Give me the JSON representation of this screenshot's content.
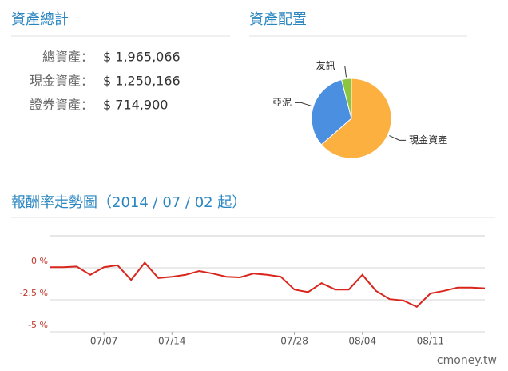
{
  "assets": {
    "title": "資產總計",
    "rows": [
      [
        "總資產：",
        "$ 1,965,066"
      ],
      [
        "現金資產：",
        "$ 1,250,166"
      ],
      [
        "證券資產：",
        "$ 714,900"
      ]
    ]
  },
  "chart_data": [
    {
      "type": "pie",
      "title": "資產配置",
      "categories": [
        "現金資產",
        "亞泥",
        "友訊"
      ],
      "values": [
        63.6,
        32.4,
        4
      ],
      "colors": [
        "#fbb040",
        "#4a8fe0",
        "#8cc63f"
      ]
    },
    {
      "type": "line",
      "title": "報酬率走勢圖（2014 / 07 / 02 起）",
      "categories": [
        null,
        null,
        null,
        null,
        "07/07",
        null,
        null,
        null,
        null,
        "07/14",
        null,
        null,
        null,
        null,
        null,
        null,
        null,
        null,
        "07/28",
        null,
        null,
        null,
        null,
        "08/04",
        null,
        null,
        null,
        null,
        "08/11",
        null,
        null,
        null,
        null
      ],
      "series": [
        {
          "color": "#d9261c",
          "values": [
            0.05,
            0.05,
            0.1,
            -0.55,
            0.05,
            0.2,
            -0.95,
            0.4,
            -0.8,
            -0.7,
            -0.55,
            -0.25,
            -0.45,
            -0.7,
            -0.75,
            -0.45,
            -0.55,
            -0.7,
            -1.7,
            -1.9,
            -1.2,
            -1.7,
            -1.7,
            -0.55,
            -1.8,
            -2.45,
            -2.55,
            -3.05,
            -2.0,
            -1.8,
            -1.55,
            -1.55,
            -1.6
          ]
        }
      ],
      "ylim": [
        -5,
        2.5
      ],
      "yticks": [
        {
          "value": 0,
          "label": "0 %"
        },
        {
          "value": -2.5,
          "label": "-2.5 %"
        },
        {
          "value": -5,
          "label": "-5 %"
        }
      ],
      "grid": true
    }
  ],
  "footer": "cmoney.tw"
}
